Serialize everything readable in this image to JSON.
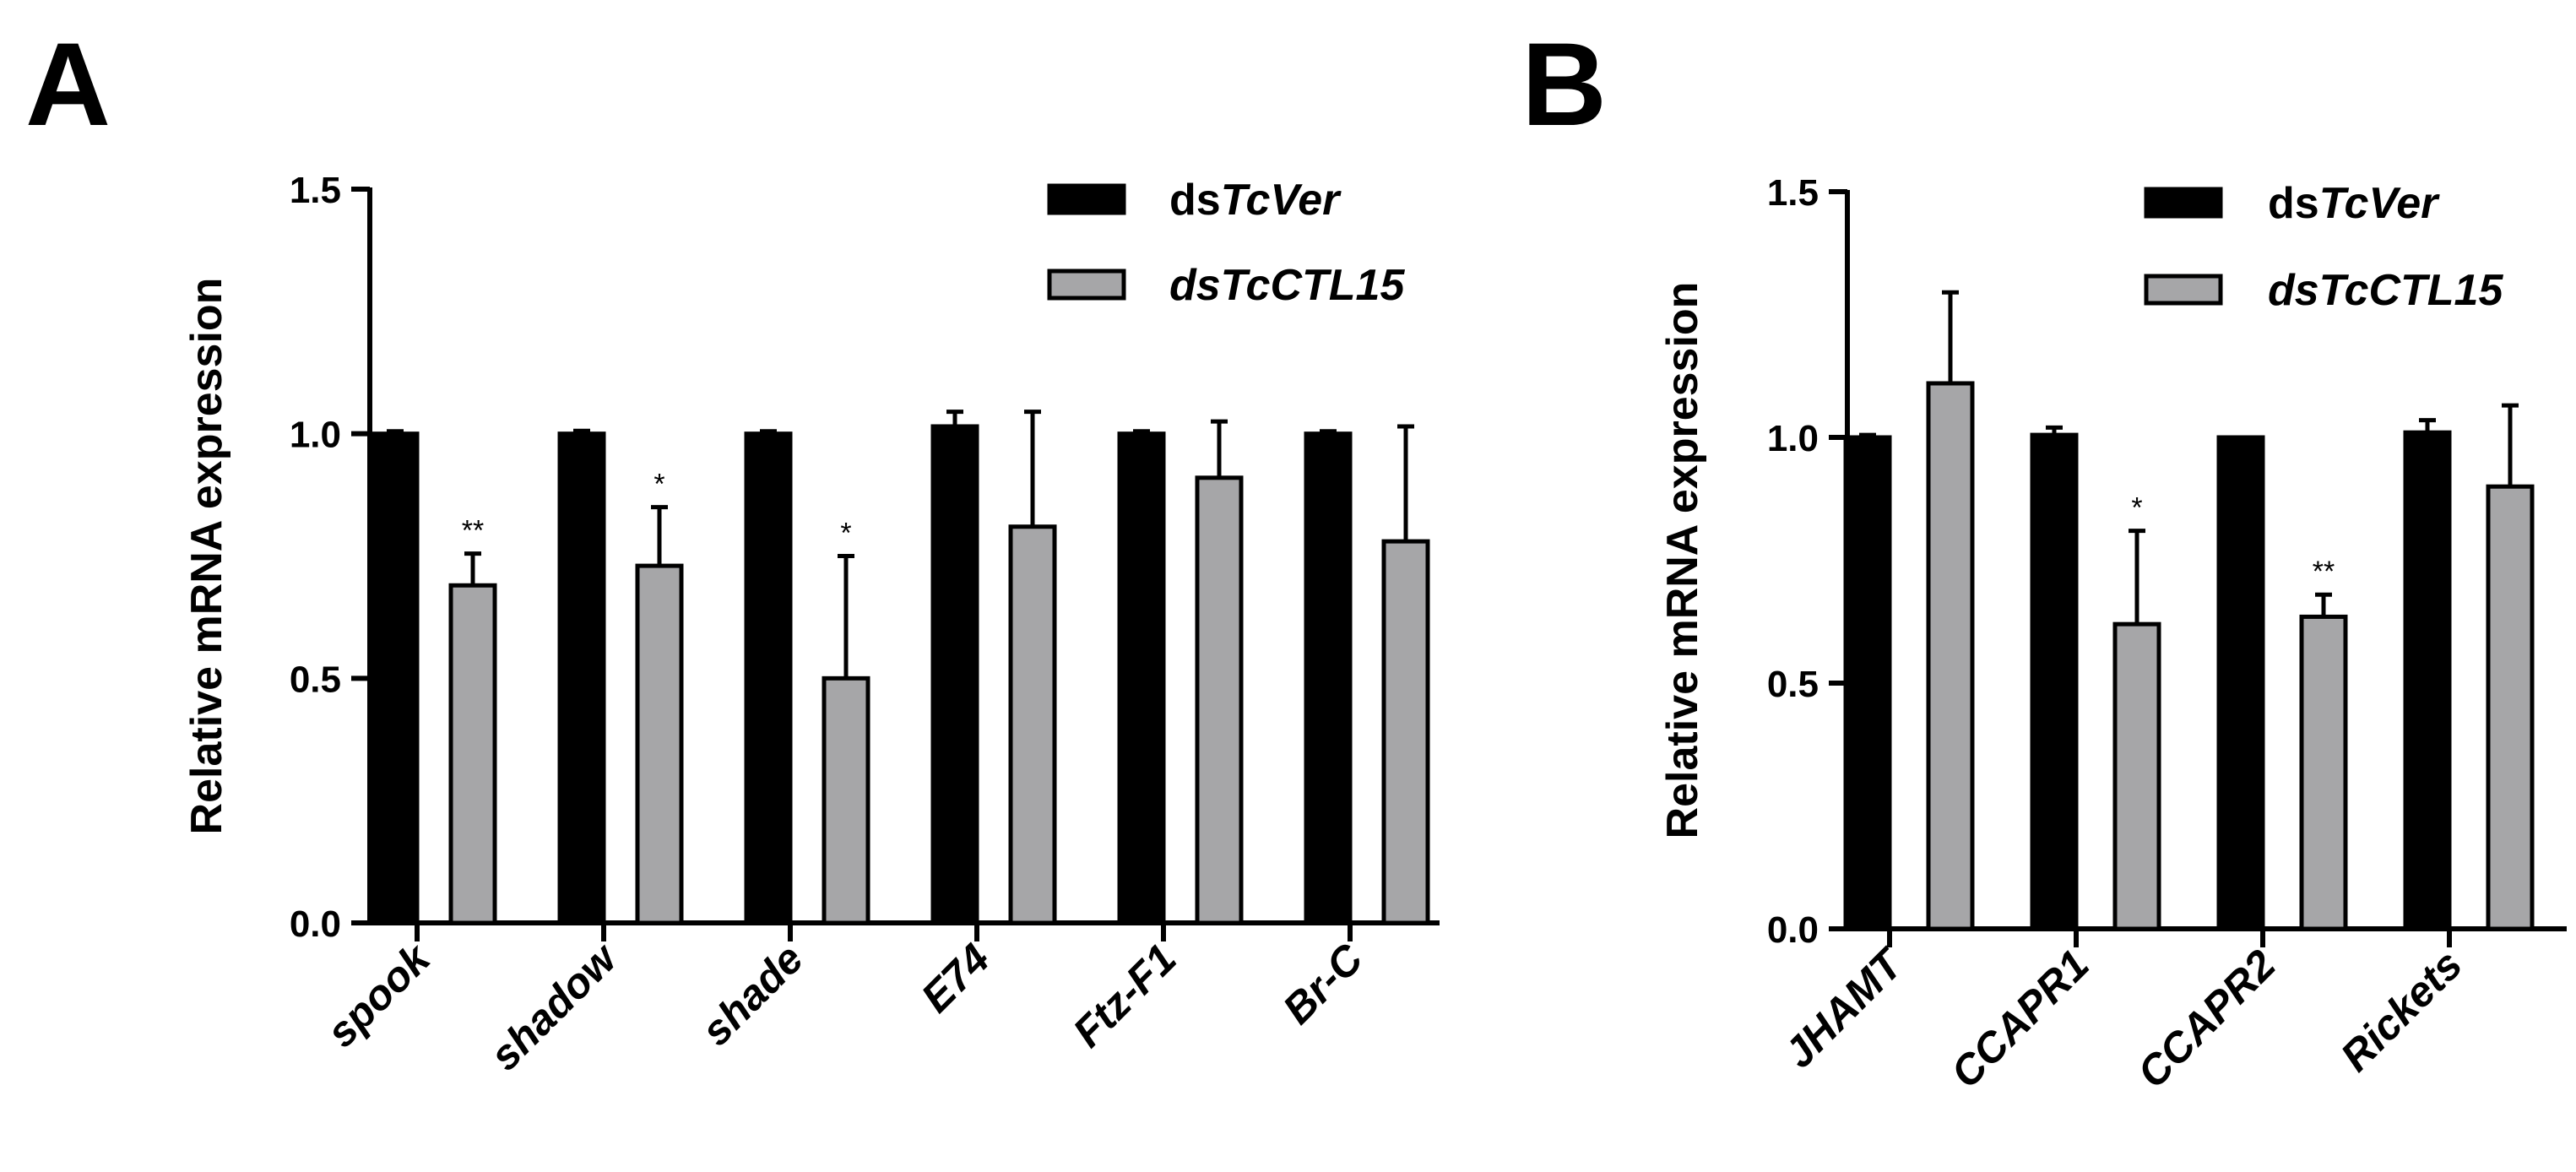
{
  "colors": {
    "ds_tcver": "#000000",
    "ds_tcctl15": "#a6a6a8",
    "axis": "#000000"
  },
  "chart_data": [
    {
      "panel": "A",
      "type": "bar",
      "ylabel": "Relative mRNA expression",
      "ylim": [
        0,
        1.5
      ],
      "yticks": [
        "0.0",
        "0.5",
        "1.0",
        "1.5"
      ],
      "ytick_values": [
        0,
        0.5,
        1.0,
        1.5
      ],
      "categories": [
        "spook",
        "shadow",
        "shade",
        "E74",
        "Ftz-F1",
        "Br-C"
      ],
      "legend": [
        {
          "prefix": "ds",
          "italic": "TcVer"
        },
        {
          "prefix": "",
          "italic": "dsTcCTL15"
        }
      ],
      "series": [
        {
          "name": "dsTcVer",
          "values": [
            1.0,
            1.0,
            1.0,
            1.015,
            1.0,
            1.0
          ],
          "errors": [
            0.005,
            0.006,
            0.005,
            0.03,
            0.005,
            0.005
          ]
        },
        {
          "name": "dsTcCTL15",
          "values": [
            0.69,
            0.73,
            0.5,
            0.81,
            0.91,
            0.78
          ],
          "errors": [
            0.065,
            0.12,
            0.25,
            0.235,
            0.115,
            0.235
          ]
        }
      ],
      "significance": [
        "**",
        "*",
        "*",
        "",
        "",
        ""
      ]
    },
    {
      "panel": "B",
      "type": "bar",
      "ylabel": "Relative mRNA expression",
      "ylim": [
        0,
        1.5
      ],
      "yticks": [
        "0.0",
        "0.5",
        "1.0",
        "1.5"
      ],
      "ytick_values": [
        0,
        0.5,
        1.0,
        1.5
      ],
      "categories": [
        "JHAMT",
        "CCAPR1",
        "CCAPR2",
        "Rickets"
      ],
      "legend": [
        {
          "prefix": "ds",
          "italic": "TcVer"
        },
        {
          "prefix": "",
          "italic": "dsTcCTL15"
        }
      ],
      "series": [
        {
          "name": "dsTcVer",
          "values": [
            1.0,
            1.005,
            1.0,
            1.01
          ],
          "errors": [
            0.005,
            0.015,
            0.0,
            0.025
          ]
        },
        {
          "name": "dsTcCTL15",
          "values": [
            1.11,
            0.62,
            0.635,
            0.9
          ],
          "errors": [
            0.185,
            0.19,
            0.045,
            0.165
          ]
        }
      ],
      "significance": [
        "",
        "*",
        "**",
        ""
      ]
    }
  ]
}
